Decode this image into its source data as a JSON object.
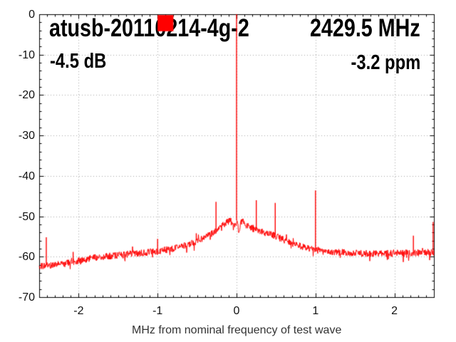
{
  "header": {
    "title": "atusb-20110214-4g-2",
    "frequency": "2429.5 MHz",
    "level": "-4.5 dB",
    "ppm_offset": "-3.2 ppm"
  },
  "chart_data": {
    "type": "line",
    "title": "atusb-20110214-4g-2",
    "annotations": [
      "2429.5 MHz",
      "-4.5 dB",
      "-3.2 ppm"
    ],
    "xlabel": "MHz from nominal frequency of test wave",
    "ylabel": "",
    "xlim": [
      -2.5,
      2.5
    ],
    "ylim": [
      -70,
      0
    ],
    "x_major_ticks": [
      -2,
      -1,
      0,
      1,
      2
    ],
    "y_major_ticks": [
      0,
      -10,
      -20,
      -30,
      -40,
      -50,
      -60,
      -70
    ],
    "x_minor_step": 0.1,
    "y_minor_step": 2,
    "grid": true,
    "legend": false,
    "series_color": "#ff0000",
    "grid_color": "#a8a8a8",
    "axis_color": "#000000",
    "noise_amplitude_db": 0.85,
    "noise_floor_profile": [
      [
        -2.5,
        -62.4
      ],
      [
        -2.2,
        -61.8
      ],
      [
        -2.0,
        -61.0
      ],
      [
        -1.8,
        -60.2
      ],
      [
        -1.5,
        -59.6
      ],
      [
        -1.2,
        -59.1
      ],
      [
        -1.0,
        -58.6
      ],
      [
        -0.8,
        -58.0
      ],
      [
        -0.6,
        -56.9
      ],
      [
        -0.45,
        -55.7
      ],
      [
        -0.35,
        -54.8
      ],
      [
        -0.25,
        -53.4
      ],
      [
        -0.16,
        -52.0
      ],
      [
        -0.08,
        -50.9
      ],
      [
        -0.04,
        -52.8
      ],
      [
        0.0,
        -51.3
      ],
      [
        0.03,
        -53.6
      ],
      [
        0.07,
        -50.8
      ],
      [
        0.12,
        -52.2
      ],
      [
        0.2,
        -53.0
      ],
      [
        0.3,
        -53.8
      ],
      [
        0.4,
        -54.3
      ],
      [
        0.5,
        -54.9
      ],
      [
        0.6,
        -55.9
      ],
      [
        0.8,
        -57.4
      ],
      [
        1.0,
        -58.3
      ],
      [
        1.3,
        -58.9
      ],
      [
        1.6,
        -59.2
      ],
      [
        2.0,
        -59.2
      ],
      [
        2.3,
        -59.0
      ],
      [
        2.5,
        -58.9
      ]
    ],
    "spikes": [
      {
        "x": -2.41,
        "peak_db": -55.2
      },
      {
        "x": -2.07,
        "peak_db": -58.8
      },
      {
        "x": -1.0,
        "peak_db": -55.6
      },
      {
        "x": -0.51,
        "peak_db": -54.2
      },
      {
        "x": -0.26,
        "peak_db": -46.4
      },
      {
        "x": 0.0,
        "peak_db": 0.0
      },
      {
        "x": 0.25,
        "peak_db": -46.0
      },
      {
        "x": 0.49,
        "peak_db": -46.7
      },
      {
        "x": 1.0,
        "peak_db": -43.6
      },
      {
        "x": 2.24,
        "peak_db": -54.8
      },
      {
        "x": 2.49,
        "peak_db": -51.4
      }
    ],
    "marker_rect": {
      "x0": -1.0,
      "x1": -0.8,
      "y_top": -0.2,
      "y_bottom": -4.2,
      "color": "#ff0000"
    }
  }
}
